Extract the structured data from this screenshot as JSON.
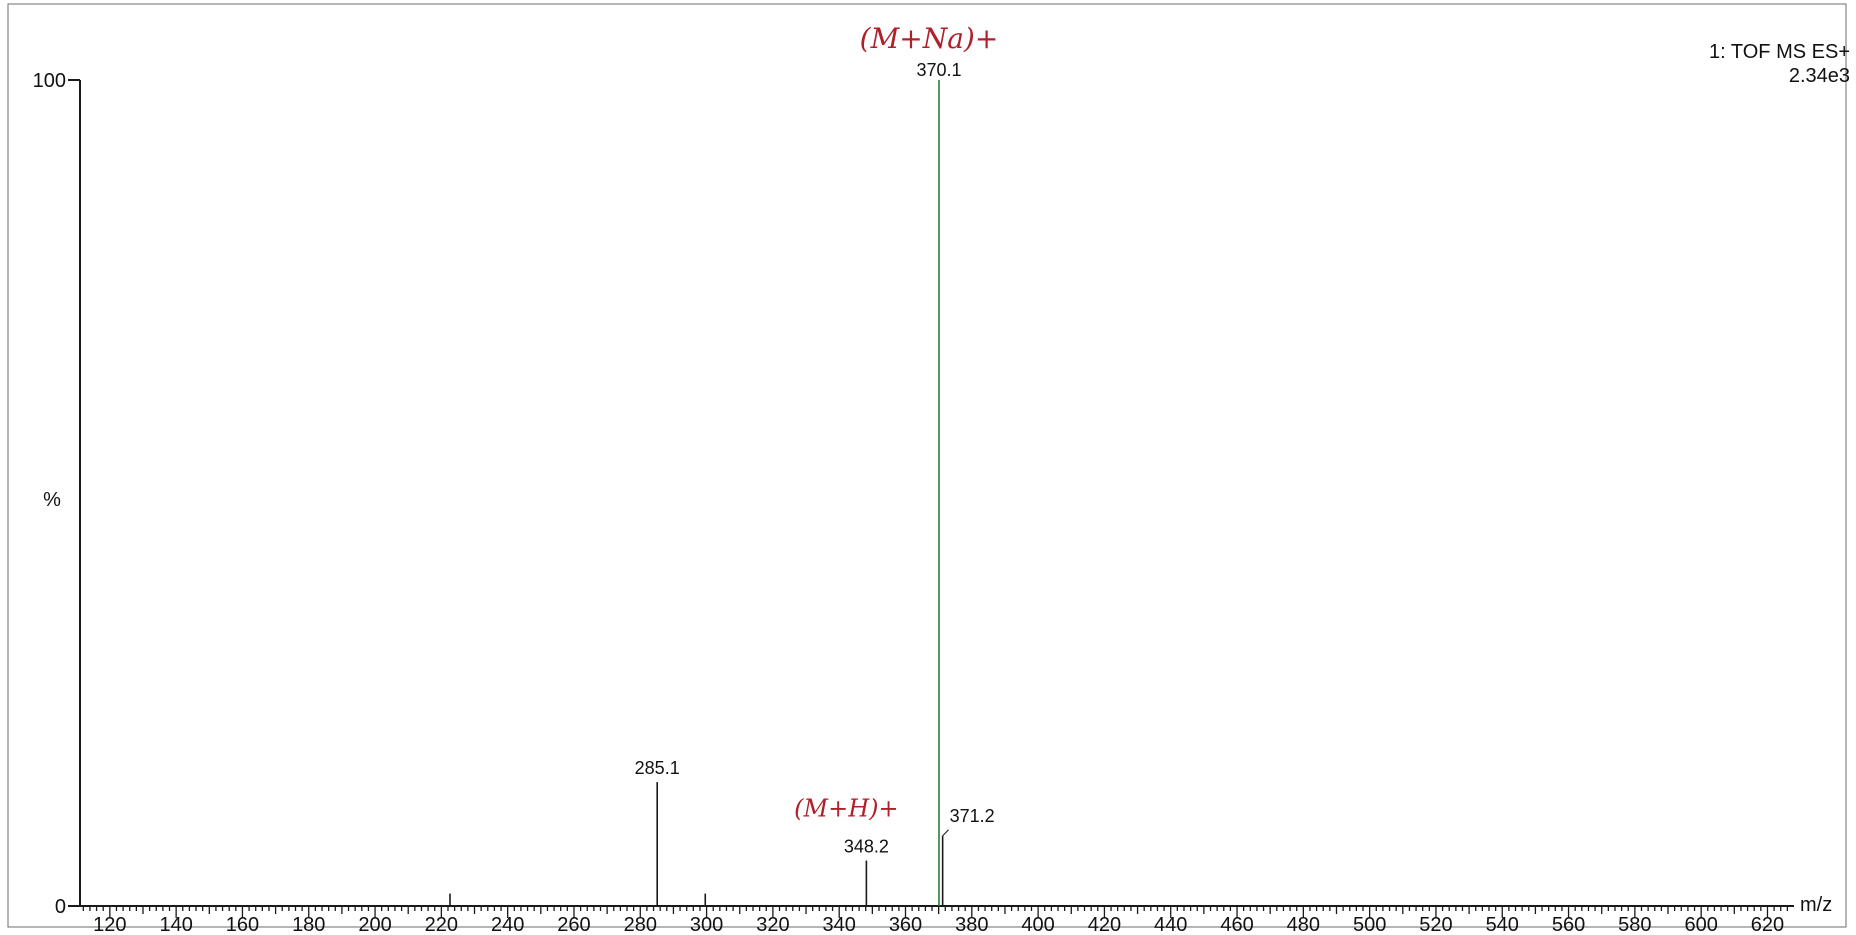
{
  "chart_data": {
    "type": "bar",
    "title": "1: TOF MS ES+",
    "subtitle": "2.34e3",
    "xlabel": "m/z",
    "ylabel": "%",
    "xlim": [
      111,
      628
    ],
    "ylim": [
      0,
      100
    ],
    "x_ticks": [
      120,
      140,
      160,
      180,
      200,
      220,
      240,
      260,
      280,
      300,
      320,
      340,
      360,
      380,
      400,
      420,
      440,
      460,
      480,
      500,
      520,
      540,
      560,
      580,
      600,
      620
    ],
    "y_ticks": [
      0,
      100
    ],
    "peaks": [
      {
        "x": 222.6,
        "y": 1.5,
        "label": ""
      },
      {
        "x": 285.1,
        "y": 15,
        "label": "285.1"
      },
      {
        "x": 299.6,
        "y": 1.5,
        "label": ""
      },
      {
        "x": 348.2,
        "y": 5.5,
        "label": "348.2"
      },
      {
        "x": 370.1,
        "y": 100,
        "label": "370.1"
      },
      {
        "x": 371.2,
        "y": 8.5,
        "label": "371.2"
      }
    ],
    "annotations": [
      {
        "text": "(M+Na)+",
        "near": "370.1"
      },
      {
        "text": "(M+H)+",
        "near": "348.2"
      }
    ],
    "line_color": "#2e7d3a",
    "axis_color": "#1a1a1a",
    "annotation_color": "#b0202a"
  }
}
